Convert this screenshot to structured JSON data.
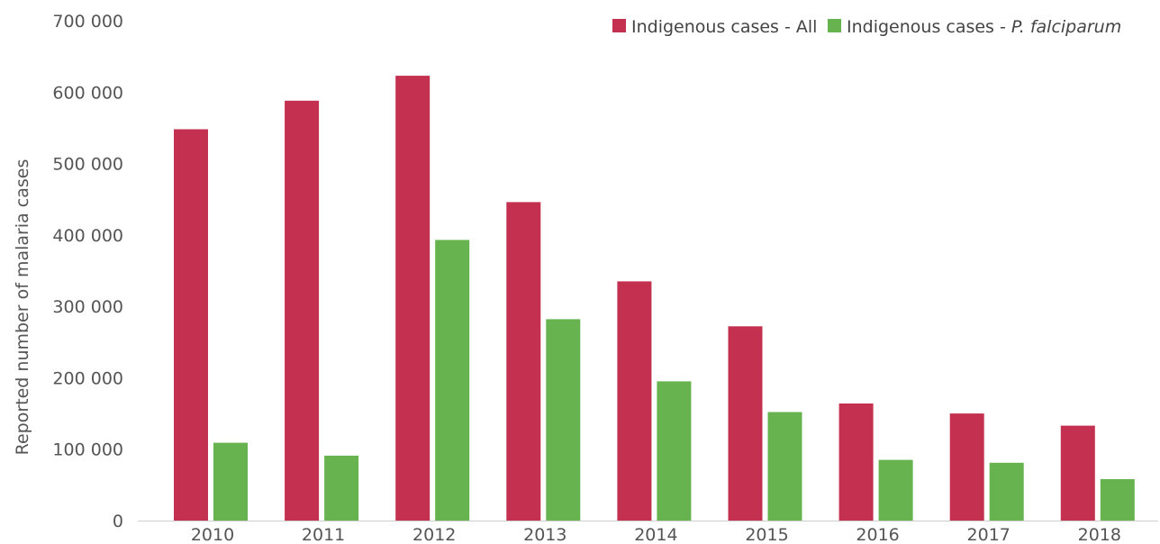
{
  "chart_data": {
    "type": "bar",
    "categories": [
      "2010",
      "2011",
      "2012",
      "2013",
      "2014",
      "2015",
      "2016",
      "2017",
      "2018"
    ],
    "series": [
      {
        "name": "Indigenous cases - All",
        "color": "#c4304f",
        "values": [
          548000,
          588000,
          623000,
          446000,
          335000,
          272000,
          164000,
          150000,
          133000
        ]
      },
      {
        "name": "Indigenous cases - ",
        "name_italic": "P. falciparum",
        "color": "#66b34f",
        "values": [
          109000,
          91000,
          393000,
          282000,
          195000,
          152000,
          85000,
          81000,
          58000
        ]
      }
    ],
    "ylabel": "Reported number of malaria cases",
    "xlabel": "",
    "ylim": [
      0,
      700000
    ],
    "yticks": [
      0,
      100000,
      200000,
      300000,
      400000,
      500000,
      600000,
      700000
    ],
    "ytick_labels": [
      "0",
      "100 000",
      "200 000",
      "300 000",
      "400 000",
      "500 000",
      "600  000",
      "700 000"
    ],
    "grid": false,
    "legend_position": "top-right"
  }
}
